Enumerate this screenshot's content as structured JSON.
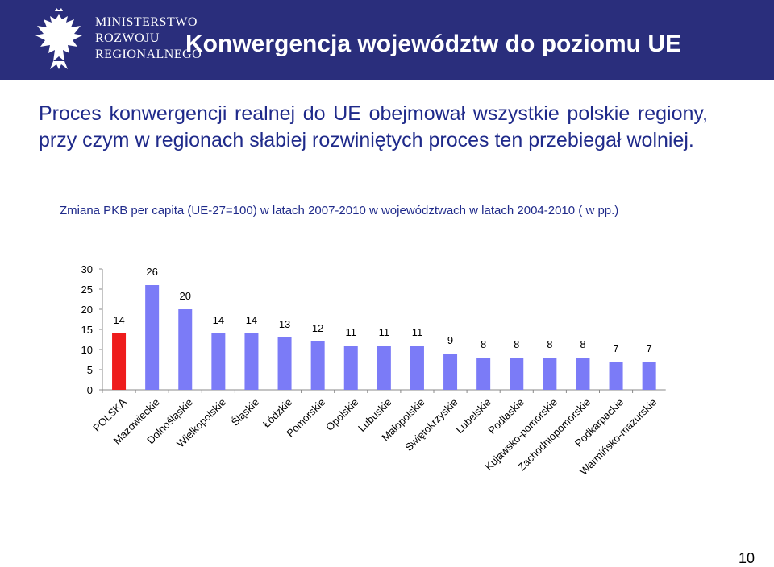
{
  "header": {
    "logo_lines": [
      "MINISTERSTWO",
      "ROZWOJU",
      "REGIONALNEGO"
    ],
    "title": "Konwergencja województw do poziomu UE"
  },
  "intro_text": "Proces konwergencji realnej do UE obejmował wszystkie polskie regiony, przy czym w regionach słabiej rozwiniętych proces ten przebiegał wolniej.",
  "page_number": "10",
  "colors": {
    "header_bg": "#2a2e7c",
    "text_blue": "#1f2a8a",
    "bar_default": "#7b7bf7",
    "bar_highlight": "#ee1c1c"
  },
  "chart_data": {
    "type": "bar",
    "title": "Zmiana PKB per capita  (UE-27=100) w latach 2007-2010 w województwach w latach 2004-2010 ( w pp.)",
    "categories": [
      "POLSKA",
      "Mazowieckie",
      "Dolnośląskie",
      "Wielkopolskie",
      "Śląskie",
      "Łódzkie",
      "Pomorskie",
      "Opolskie",
      "Lubuskie",
      "Małopolskie",
      "Świętokrzyskie",
      "Lubelskie",
      "Podlaskie",
      "Kujawsko-pomorskie",
      "Zachodniopomorskie",
      "Podkarpackie",
      "Warmińsko-mazurskie"
    ],
    "values": [
      14,
      26,
      20,
      14,
      14,
      13,
      12,
      11,
      11,
      11,
      9,
      8,
      8,
      8,
      8,
      7,
      7
    ],
    "highlight_index": 0,
    "ylim": [
      0,
      30
    ],
    "yticks": [
      0,
      5,
      10,
      15,
      20,
      25,
      30
    ],
    "data_labels": true,
    "grid": false,
    "legend": "none"
  }
}
